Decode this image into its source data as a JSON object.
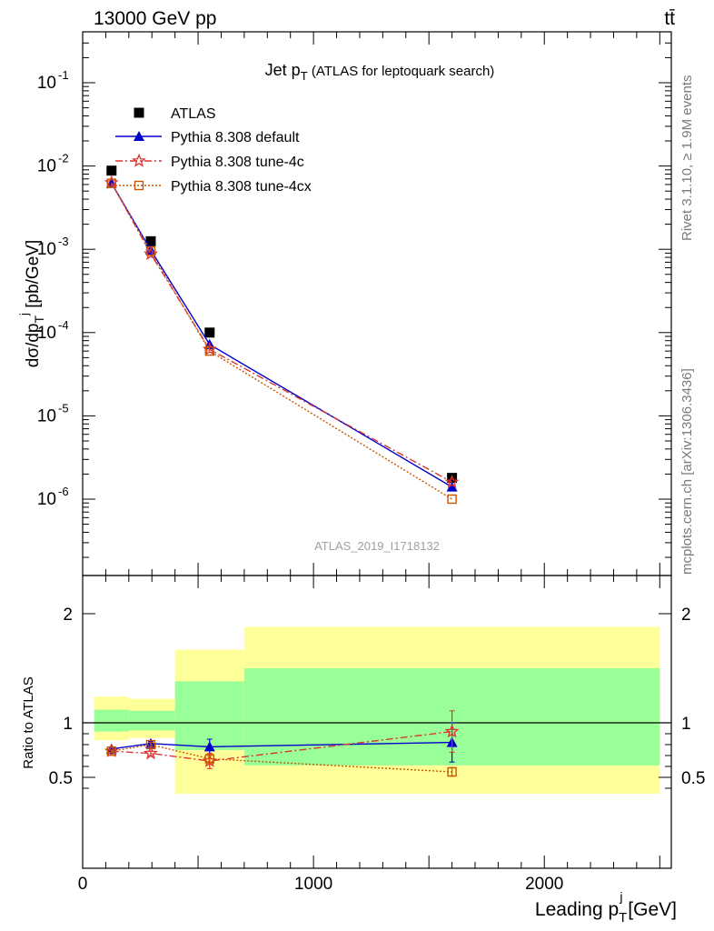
{
  "header": {
    "left": "13000 GeV pp",
    "right": "tt̄"
  },
  "side_labels": {
    "rivet": "Rivet 3.1.10, ≥ 1.9M events",
    "mcplots": "mcplots.cern.ch [arXiv:1306.3436]"
  },
  "analysis_id": "ATLAS_2019_I1718132",
  "chart_data": [
    {
      "type": "line",
      "panel": "main",
      "title": "Jet p_T (ATLAS for leptoquark search)",
      "ylabel": "dσ/dp_T^j [pb/GeV]",
      "yscale": "log",
      "ylim": [
        2e-07,
        0.4
      ],
      "xlim": [
        0,
        2550
      ],
      "y_ticks": [
        "10^-1",
        "10^-2",
        "10^-3",
        "10^-4",
        "10^-5",
        "10^-6"
      ],
      "legend_position": "top-left",
      "x": [
        125,
        295,
        550,
        1600
      ],
      "series": [
        {
          "name": "ATLAS",
          "marker": "square",
          "color": "#000000",
          "values": [
            0.0088,
            0.00125,
            0.0001,
            1.8e-06
          ]
        },
        {
          "name": "Pythia 8.308 default",
          "marker": "triangle",
          "color": "#0000cc",
          "line": "solid",
          "values": [
            0.0062,
            0.00098,
            7.2e-05,
            1.4e-06
          ]
        },
        {
          "name": "Pythia 8.308 tune-4c",
          "marker": "star",
          "color": "#dd3333",
          "line": "dashdot",
          "values": [
            0.0063,
            0.00088,
            6.3e-05,
            1.6e-06
          ]
        },
        {
          "name": "Pythia 8.308 tune-4cx",
          "marker": "open-square",
          "color": "#cc5500",
          "line": "dotted",
          "values": [
            0.0062,
            0.00095,
            6e-05,
            1e-06
          ]
        }
      ]
    },
    {
      "type": "line",
      "panel": "ratio",
      "xlabel": "Leading p_T^j [GeV]",
      "ylabel": "Ratio to ATLAS",
      "ylim": [
        0.35,
        2.3
      ],
      "xlim": [
        0,
        2550
      ],
      "x_ticks": [
        0,
        1000,
        2000
      ],
      "y_ticks": [
        0.5,
        1,
        2
      ],
      "x": [
        125,
        295,
        550,
        1600
      ],
      "bands": [
        {
          "x0": 50,
          "x1": 200,
          "green": [
            0.92,
            1.12
          ],
          "yellow": [
            0.84,
            1.24
          ]
        },
        {
          "x0": 200,
          "x1": 400,
          "green": [
            0.93,
            1.11
          ],
          "yellow": [
            0.86,
            1.22
          ]
        },
        {
          "x0": 400,
          "x1": 700,
          "green": [
            0.75,
            1.38
          ],
          "yellow": [
            0.35,
            1.67
          ]
        },
        {
          "x0": 700,
          "x1": 2500,
          "green": [
            0.61,
            1.5
          ],
          "yellow": [
            0.35,
            1.88
          ]
        }
      ],
      "series": [
        {
          "name": "Pythia 8.308 default",
          "color": "#0000cc",
          "values": [
            0.76,
            0.81,
            0.78,
            0.82
          ],
          "err": [
            0.01,
            0.02,
            0.07,
            0.18
          ]
        },
        {
          "name": "Pythia 8.308 tune-4c",
          "color": "#dd3333",
          "values": [
            0.74,
            0.72,
            0.65,
            0.92
          ],
          "err": [
            0.01,
            0.02,
            0.07,
            0.19
          ]
        },
        {
          "name": "Pythia 8.308 tune-4cx",
          "color": "#cc5500",
          "values": [
            0.74,
            0.8,
            0.67,
            0.55
          ],
          "err": [
            0.01,
            0.02,
            0.03,
            0.04
          ]
        }
      ]
    }
  ]
}
